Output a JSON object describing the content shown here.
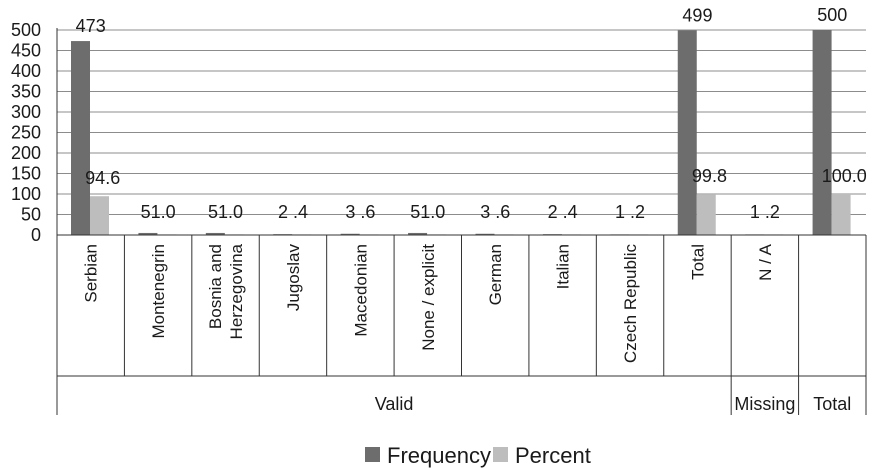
{
  "chart_data": {
    "type": "bar",
    "categories": [
      "Serbian",
      "Montenegrin",
      "Bosnia and Herzegovina",
      "Jugoslav",
      "Macedonian",
      "None / explicit",
      "German",
      "Italian",
      "Czech Republic",
      "Total",
      "N / A",
      ""
    ],
    "category_lines": [
      [
        "Serbian"
      ],
      [
        "Montenegrin"
      ],
      [
        "Bosnia and",
        "Herzegovina"
      ],
      [
        "Jugoslav"
      ],
      [
        "Macedonian"
      ],
      [
        "None / explicit"
      ],
      [
        "German"
      ],
      [
        "Italian"
      ],
      [
        "Czech Republic"
      ],
      [
        "Total"
      ],
      [
        "N / A"
      ],
      [
        ""
      ]
    ],
    "groups": [
      {
        "label": "Valid",
        "span": [
          0,
          9
        ]
      },
      {
        "label": "Missing",
        "span": [
          10,
          10
        ]
      },
      {
        "label": "Total",
        "span": [
          11,
          11
        ]
      }
    ],
    "series": [
      {
        "name": "Frequency",
        "color": "#6d6d6d",
        "values": [
          473,
          5,
          5,
          2,
          3,
          5,
          3,
          2,
          1,
          499,
          1,
          500
        ]
      },
      {
        "name": "Percent",
        "color": "#bdbdbd",
        "values": [
          94.6,
          1.0,
          1.0,
          0.4,
          0.6,
          1.0,
          0.6,
          0.4,
          0.2,
          99.8,
          0.2,
          100.0
        ]
      }
    ],
    "data_labels": [
      "473",
      "51.0",
      "51.0",
      "2 .4",
      "3 .6",
      "51.0",
      "3 .6",
      "2 .4",
      "1 .2",
      "499",
      "1 .2",
      "500"
    ],
    "percent_labels": {
      "0": "94.6",
      "9": "99.8",
      "11": "100.0"
    },
    "y_ticks": [
      "0",
      "50",
      "100",
      "150",
      "200",
      "250",
      "300",
      "350",
      "400",
      "450",
      "500"
    ],
    "ylim": [
      0,
      500
    ],
    "grid": true,
    "legend_position": "bottom"
  }
}
